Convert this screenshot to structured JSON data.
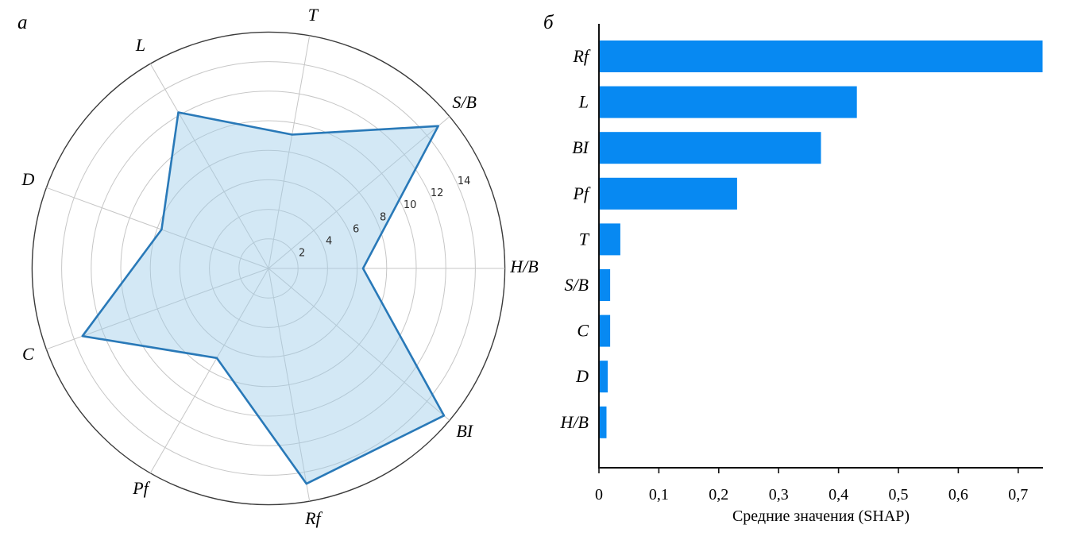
{
  "panel_labels": {
    "left": "a",
    "right": "б"
  },
  "colors": {
    "bar_fill": "#0789f2",
    "radar_stroke": "#2979b8",
    "radar_fill": "rgba(158,205,232,0.45)",
    "grid": "#c6c6c6",
    "outer_ring": "#3a3a3a",
    "axis_line": "#111111",
    "text": "#000000",
    "radial_tick_text": "#2b2b2b"
  },
  "chart_data": [
    {
      "type": "radar",
      "panel": "a",
      "categories": [
        "T",
        "S/B",
        "H/B",
        "BI",
        "Rf",
        "Pf",
        "C",
        "D",
        "L"
      ],
      "values": [
        9.2,
        15.0,
        6.4,
        15.5,
        14.8,
        7.0,
        13.4,
        7.7,
        12.2
      ],
      "start_angle_deg": 80,
      "step_deg": -40,
      "r_max": 16,
      "r_ticks": [
        2,
        4,
        6,
        8,
        10,
        12,
        14
      ],
      "r_tick_labels": [
        "2",
        "4",
        "6",
        "8",
        "10",
        "12",
        "14"
      ],
      "r_tick_label_angle_deg": 24,
      "grid": true,
      "legend": false
    },
    {
      "type": "bar",
      "panel": "б",
      "orientation": "horizontal",
      "categories": [
        "Rf",
        "L",
        "BI",
        "Pf",
        "T",
        "S/B",
        "C",
        "D",
        "H/B"
      ],
      "values": [
        0.74,
        0.43,
        0.37,
        0.23,
        0.035,
        0.018,
        0.018,
        0.014,
        0.012
      ],
      "xlabel": "Средние значения (SHAP)",
      "xlim": [
        0,
        0.74
      ],
      "xticks": [
        0,
        0.1,
        0.2,
        0.3,
        0.4,
        0.5,
        0.6,
        0.7
      ],
      "xtick_labels": [
        "0",
        "0,1",
        "0,2",
        "0,3",
        "0,4",
        "0,5",
        "0,6",
        "0,7"
      ],
      "grid": false,
      "legend": false
    }
  ]
}
